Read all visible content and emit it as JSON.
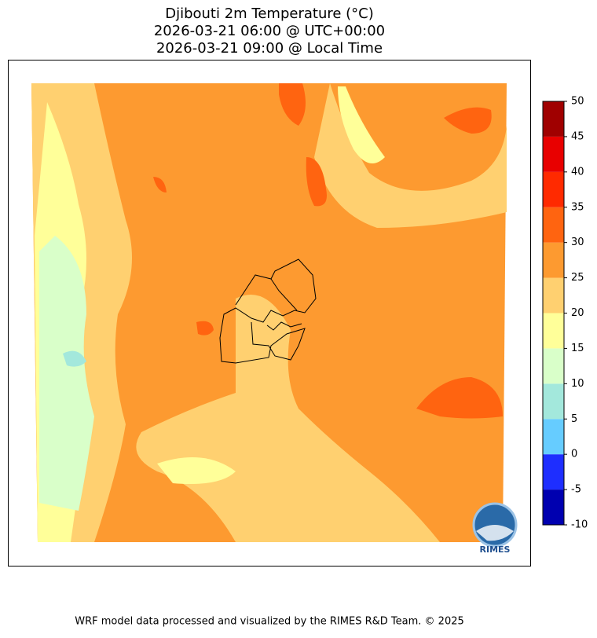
{
  "title": [
    "Djibouti 2m Temperature (°C)",
    "2026-03-21 06:00 @ UTC+00:00",
    "2026-03-21 09:00 @ Local Time"
  ],
  "colorbar": {
    "ticks": [
      -10,
      -5,
      0,
      5,
      10,
      15,
      20,
      25,
      30,
      35,
      40,
      45,
      50
    ],
    "colors": [
      "#0000b0",
      "#1e2eff",
      "#66ccff",
      "#a3e8dc",
      "#d9ffc9",
      "#ffff99",
      "#ffd070",
      "#fd9a30",
      "#ff6410",
      "#ff2a00",
      "#e80000",
      "#a00000"
    ]
  },
  "logo": "RIMES",
  "footer": "WRF model data processed and visualized by the RIMES R&D Team. © 2025"
}
